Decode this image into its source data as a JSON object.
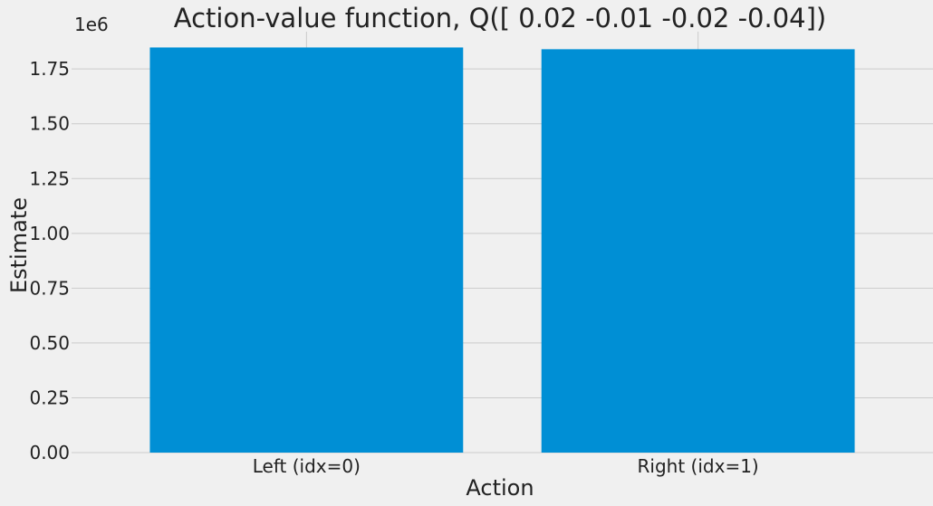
{
  "chart_data": {
    "type": "bar",
    "title": "Action-value function, Q([ 0.02 -0.01 -0.02 -0.04])",
    "xlabel": "Action",
    "ylabel": "Estimate",
    "offset_label": "1e6",
    "categories": [
      "Left (idx=0)",
      "Right (idx=1)"
    ],
    "values": [
      1848000,
      1840000
    ],
    "ylim": [
      0,
      1920000
    ],
    "yticks": [
      0,
      250000,
      500000,
      750000,
      1000000,
      1250000,
      1500000,
      1750000
    ],
    "ytick_labels": [
      "0.00",
      "0.25",
      "0.50",
      "0.75",
      "1.00",
      "1.25",
      "1.50",
      "1.75"
    ],
    "grid": true,
    "bar_color": "#008fd5",
    "background_color": "#f0f0f0",
    "grid_color": "#cbcbcb"
  }
}
